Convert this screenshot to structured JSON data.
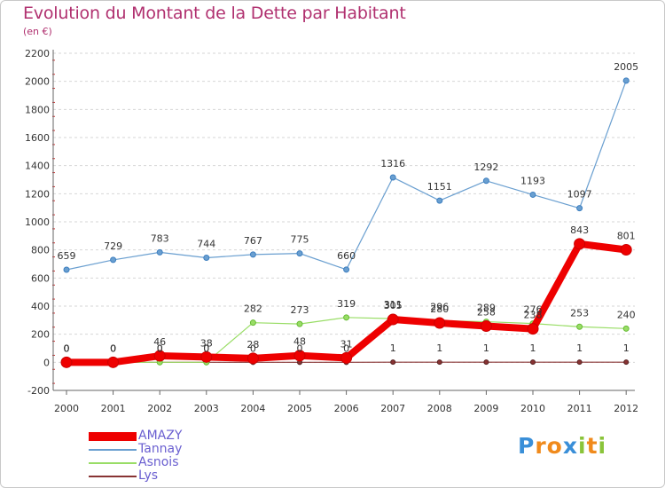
{
  "chart_data": {
    "type": "line",
    "title": "Evolution du Montant de la Dette par Habitant",
    "subtitle": "(en €)",
    "xlabel": "",
    "ylabel": "",
    "categories": [
      "2000",
      "2001",
      "2002",
      "2003",
      "2004",
      "2005",
      "2006",
      "2007",
      "2008",
      "2009",
      "2010",
      "2011",
      "2012"
    ],
    "ylim": [
      -200,
      2200
    ],
    "yticks": [
      -200,
      0,
      200,
      400,
      600,
      800,
      1000,
      1200,
      1400,
      1600,
      1800,
      2000,
      2200
    ],
    "grid": "horizontal-dashed",
    "legend": "bottom-left",
    "series": [
      {
        "name": "AMAZY",
        "color": "#ee0000",
        "values": [
          0,
          0,
          46,
          38,
          28,
          48,
          31,
          305,
          280,
          258,
          238,
          843,
          801
        ],
        "labels": [
          "0",
          "0",
          "46",
          "38",
          "28",
          "48",
          "31",
          "305",
          "280",
          "258",
          "238",
          "843",
          "801"
        ]
      },
      {
        "name": "Tannay",
        "color": "#6a9fd0",
        "values": [
          659,
          729,
          783,
          744,
          767,
          775,
          660,
          1316,
          1151,
          1292,
          1193,
          1097,
          2005
        ],
        "labels": [
          "659",
          "729",
          "783",
          "744",
          "767",
          "775",
          "660",
          "1316",
          "1151",
          "1292",
          "1193",
          "1097",
          "2005"
        ]
      },
      {
        "name": "Asnois",
        "color": "#99dd66",
        "values": [
          0,
          0,
          0,
          0,
          282,
          273,
          319,
          311,
          296,
          289,
          276,
          253,
          240
        ],
        "labels": [
          "0",
          "0",
          "0",
          "0",
          "282",
          "273",
          "319",
          "311",
          "296",
          "289",
          "276",
          "253",
          "240"
        ]
      },
      {
        "name": "Lys",
        "color": "#883333",
        "values": [
          0,
          0,
          0,
          0,
          0,
          0,
          0,
          1,
          1,
          1,
          1,
          1,
          1
        ],
        "labels": [
          "0",
          "0",
          "0",
          "0",
          "0",
          "0",
          "0",
          "1",
          "1",
          "1",
          "1",
          "1",
          "1"
        ]
      }
    ]
  },
  "logo": {
    "letters": [
      "P",
      "r",
      "o",
      "x",
      "i",
      "t",
      "i"
    ],
    "colors": [
      "#3a8fd8",
      "#f08a1c",
      "#f08a1c",
      "#3a8fd8",
      "#8ac43a",
      "#f08a1c",
      "#8ac43a"
    ]
  }
}
